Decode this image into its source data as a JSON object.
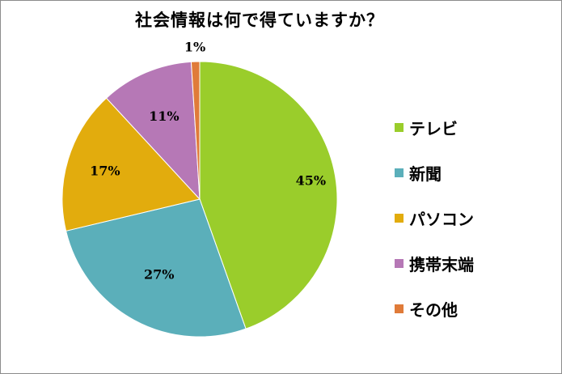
{
  "chart_data": {
    "type": "pie",
    "title": "社会情報は何で得ていますか？",
    "slices": [
      {
        "label": "テレビ",
        "value": 45,
        "display": "45%",
        "color": "#9ACD2B"
      },
      {
        "label": "新聞",
        "value": 27,
        "display": "27%",
        "color": "#5BAFBA"
      },
      {
        "label": "パソコン",
        "value": 17,
        "display": "17%",
        "color": "#E2AC0D"
      },
      {
        "label": "携帯末端",
        "value": 11,
        "display": "11%",
        "color": "#B678B6"
      },
      {
        "label": "その他",
        "value": 1,
        "display": "1%",
        "color": "#E07B39"
      }
    ],
    "legend_position": "right",
    "start": "top",
    "direction": "clockwise"
  }
}
